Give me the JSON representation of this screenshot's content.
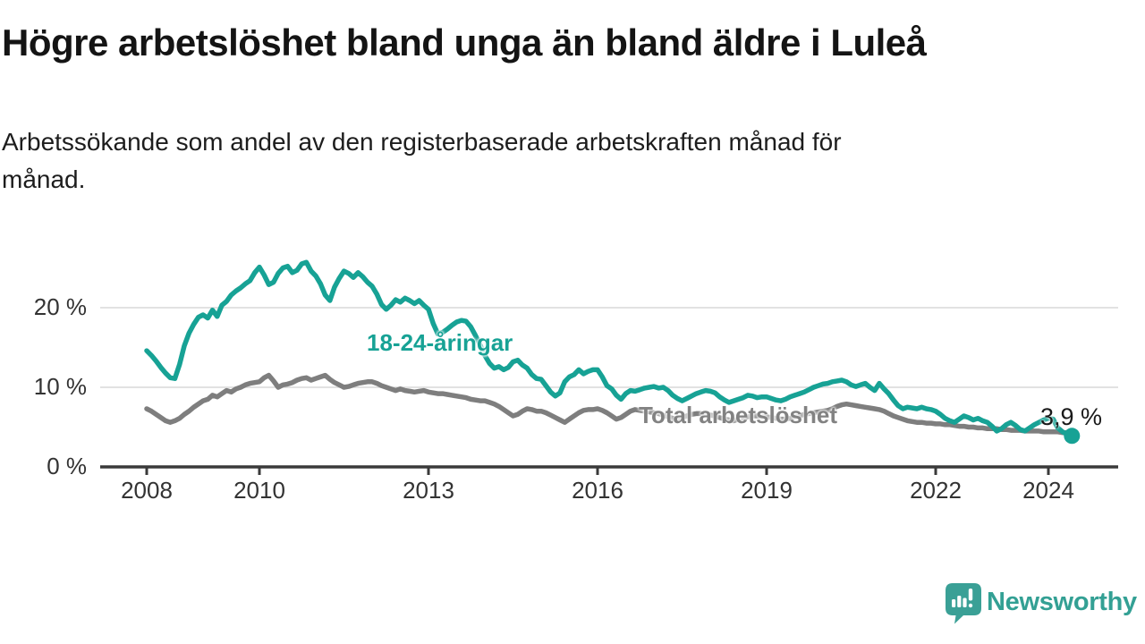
{
  "header": {
    "title": "Högre arbetslöshet bland unga än bland äldre i Luleå",
    "subtitle_lines": [
      "Arbetssökande som andel av den registerbaserade arbetskraften månad för",
      "månad."
    ]
  },
  "branding": {
    "wordmark": "Newsworthy",
    "logo_icon": "newsworthy-speech-bubble-bar-chart-icon",
    "brand_color": "#35a096"
  },
  "chart_data": {
    "type": "line",
    "frequency": "monthly",
    "x_start": "2008-01",
    "x_end": "2024-06",
    "unit": "%",
    "ylim": [
      0,
      26
    ],
    "grid": "horizontal",
    "legend_position": "inline-labels",
    "colors": {
      "axis": "#3a3a3a",
      "gridline": "#d8d8d8",
      "tick_text": "#333333",
      "annotation_text": "#1a1a1a"
    },
    "x_ticks": [
      {
        "year": 2008,
        "label": "2008"
      },
      {
        "year": 2010,
        "label": "2010"
      },
      {
        "year": 2013,
        "label": "2013"
      },
      {
        "year": 2016,
        "label": "2016"
      },
      {
        "year": 2019,
        "label": "2019"
      },
      {
        "year": 2022,
        "label": "2022"
      },
      {
        "year": 2024,
        "label": "2024"
      }
    ],
    "y_ticks": [
      {
        "value": 0,
        "label": "0 %"
      },
      {
        "value": 10,
        "label": "10 %"
      },
      {
        "value": 20,
        "label": "20 %"
      }
    ],
    "annotation": {
      "text": "3,9 %",
      "series": "18-24-åringar",
      "x": "2024-06",
      "value": 3.9
    },
    "series": [
      {
        "name": "Total arbetslöshet",
        "color": "#7e7e7e",
        "end_dot": false,
        "values": [
          7.3,
          7.0,
          6.6,
          6.2,
          5.8,
          5.6,
          5.8,
          6.1,
          6.6,
          7.0,
          7.5,
          7.9,
          8.3,
          8.5,
          9.0,
          8.8,
          9.2,
          9.6,
          9.4,
          9.8,
          10.0,
          10.3,
          10.5,
          10.6,
          10.7,
          11.2,
          11.5,
          10.8,
          10.0,
          10.3,
          10.4,
          10.6,
          10.9,
          11.1,
          11.2,
          10.9,
          11.1,
          11.3,
          11.5,
          11.0,
          10.6,
          10.3,
          10.0,
          10.1,
          10.3,
          10.5,
          10.6,
          10.7,
          10.7,
          10.5,
          10.2,
          10.0,
          9.8,
          9.6,
          9.8,
          9.6,
          9.5,
          9.4,
          9.5,
          9.6,
          9.4,
          9.3,
          9.2,
          9.2,
          9.1,
          9.0,
          8.9,
          8.8,
          8.7,
          8.5,
          8.4,
          8.3,
          8.3,
          8.1,
          7.9,
          7.6,
          7.2,
          6.8,
          6.4,
          6.6,
          7.0,
          7.3,
          7.2,
          7.0,
          7.0,
          6.8,
          6.5,
          6.2,
          5.9,
          5.6,
          6.0,
          6.4,
          6.8,
          7.1,
          7.2,
          7.2,
          7.3,
          7.1,
          6.8,
          6.4,
          6.0,
          6.2,
          6.6,
          7.0,
          7.2,
          7.1,
          7.0,
          6.9,
          6.8,
          6.7,
          6.5,
          6.3,
          6.1,
          6.0,
          6.2,
          6.4,
          6.6,
          6.7,
          6.7,
          6.6,
          6.5,
          6.4,
          6.2,
          6.0,
          5.9,
          5.8,
          6.0,
          6.2,
          6.3,
          6.4,
          6.4,
          6.3,
          6.3,
          6.2,
          6.1,
          6.0,
          6.0,
          6.1,
          6.3,
          6.4,
          6.6,
          6.7,
          6.8,
          6.9,
          7.0,
          7.1,
          7.3,
          7.6,
          7.8,
          7.9,
          7.8,
          7.7,
          7.6,
          7.5,
          7.4,
          7.3,
          7.2,
          7.0,
          6.7,
          6.4,
          6.2,
          6.0,
          5.8,
          5.7,
          5.6,
          5.6,
          5.5,
          5.5,
          5.4,
          5.4,
          5.3,
          5.3,
          5.2,
          5.1,
          5.1,
          5.0,
          5.0,
          4.9,
          4.9,
          4.8,
          4.8,
          4.8,
          4.7,
          4.7,
          4.6,
          4.6,
          4.6,
          4.5,
          4.5,
          4.5,
          4.5,
          4.4,
          4.4,
          4.4,
          4.4,
          4.3,
          4.3,
          4.3
        ]
      },
      {
        "name": "18-24-åringar",
        "color": "#17a295",
        "end_dot": true,
        "values": [
          14.6,
          14.0,
          13.3,
          12.5,
          11.8,
          11.2,
          11.1,
          12.9,
          15.2,
          16.8,
          17.9,
          18.8,
          19.1,
          18.7,
          19.7,
          18.9,
          20.3,
          20.8,
          21.6,
          22.1,
          22.5,
          23.0,
          23.4,
          24.4,
          25.1,
          24.1,
          22.9,
          23.2,
          24.3,
          25.0,
          25.2,
          24.4,
          24.7,
          25.5,
          25.7,
          24.6,
          24.0,
          23.0,
          21.6,
          20.9,
          22.6,
          23.7,
          24.6,
          24.3,
          23.8,
          24.4,
          23.9,
          23.2,
          22.7,
          21.7,
          20.4,
          19.8,
          20.3,
          21.0,
          20.7,
          21.2,
          20.9,
          20.5,
          20.9,
          20.3,
          19.8,
          18.0,
          16.7,
          16.9,
          17.3,
          17.8,
          18.2,
          18.4,
          18.3,
          17.6,
          16.5,
          15.3,
          14.0,
          13.0,
          12.4,
          12.6,
          12.2,
          12.5,
          13.2,
          13.4,
          12.8,
          12.4,
          11.6,
          11.1,
          11.0,
          10.2,
          9.4,
          8.9,
          9.3,
          10.7,
          11.3,
          11.6,
          12.2,
          11.7,
          12.0,
          12.2,
          12.2,
          11.3,
          10.2,
          9.8,
          9.0,
          8.5,
          9.2,
          9.6,
          9.5,
          9.7,
          9.9,
          10.0,
          10.1,
          9.9,
          10.0,
          9.6,
          9.0,
          8.6,
          8.3,
          8.6,
          8.9,
          9.2,
          9.4,
          9.6,
          9.5,
          9.3,
          8.8,
          8.4,
          8.1,
          8.3,
          8.5,
          8.7,
          9.0,
          8.9,
          8.7,
          8.8,
          8.8,
          8.6,
          8.4,
          8.3,
          8.5,
          8.8,
          9.0,
          9.2,
          9.4,
          9.7,
          10.0,
          10.2,
          10.4,
          10.5,
          10.7,
          10.8,
          10.9,
          10.7,
          10.3,
          10.1,
          10.3,
          10.5,
          10.0,
          9.6,
          10.5,
          9.8,
          9.2,
          8.4,
          7.7,
          7.3,
          7.5,
          7.4,
          7.3,
          7.5,
          7.3,
          7.2,
          7.0,
          6.6,
          6.1,
          5.8,
          5.6,
          6.0,
          6.4,
          6.2,
          5.9,
          6.1,
          5.8,
          5.6,
          5.1,
          4.5,
          4.8,
          5.3,
          5.6,
          5.2,
          4.7,
          4.5,
          4.9,
          5.3,
          5.6,
          5.9,
          6.1,
          6.0,
          4.9,
          4.4,
          4.1,
          3.9
        ]
      }
    ]
  }
}
